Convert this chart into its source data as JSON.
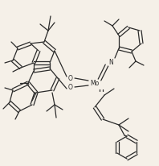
{
  "bg_color": "#f5f0e8",
  "line_color": "#2a2a2a",
  "line_width": 0.9,
  "figsize": [
    1.98,
    2.06
  ],
  "dpi": 100,
  "Mo_label": "Mo",
  "N_label": "N",
  "O1_label": "O",
  "O2_label": "O"
}
